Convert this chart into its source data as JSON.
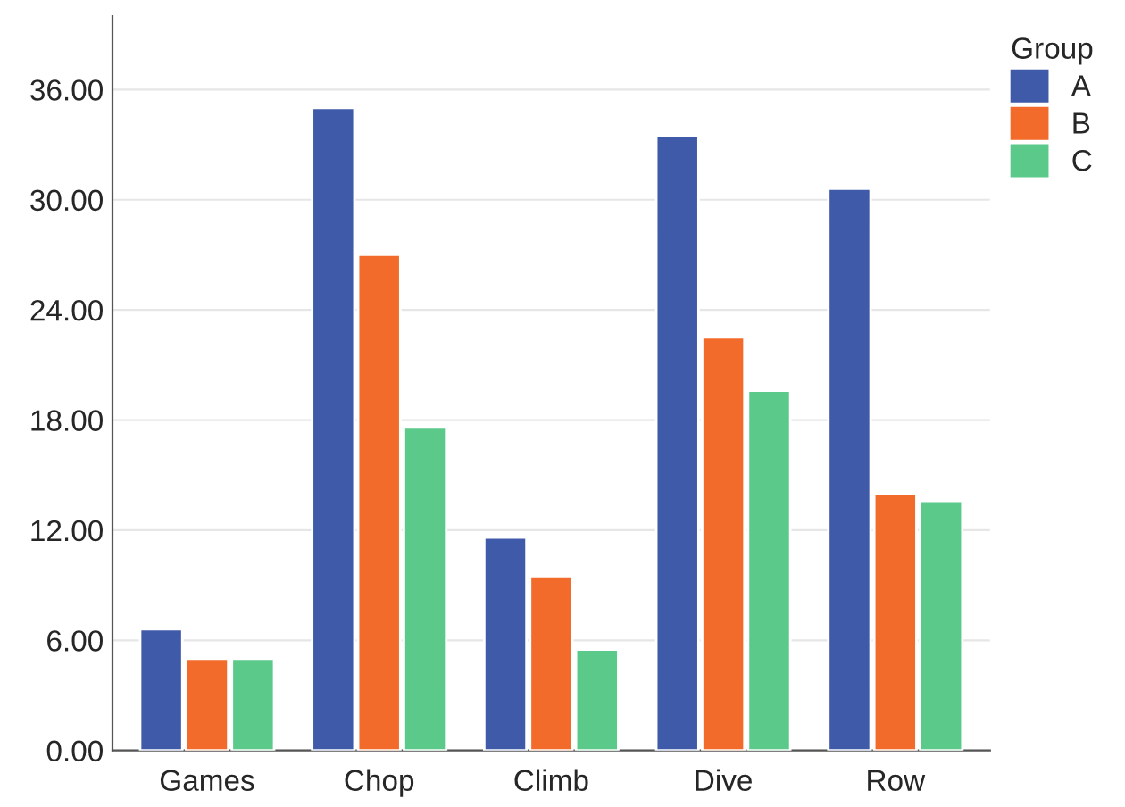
{
  "chart_data": {
    "type": "bar",
    "categories": [
      "Games",
      "Chop",
      "Climb",
      "Dive",
      "Row"
    ],
    "series": [
      {
        "name": "A",
        "color": "#3f5aa8",
        "values": [
          6.6,
          35.0,
          11.6,
          33.5,
          30.6
        ]
      },
      {
        "name": "B",
        "color": "#f26b2a",
        "values": [
          5.0,
          27.0,
          9.5,
          22.5,
          14.0
        ]
      },
      {
        "name": "C",
        "color": "#5bc98a",
        "values": [
          5.0,
          17.6,
          5.5,
          19.6,
          13.6
        ]
      }
    ],
    "legend_title": "Group",
    "legend": "top right",
    "ylim": [
      0,
      40
    ],
    "yticks": [
      {
        "value": 0,
        "label": "0.00"
      },
      {
        "value": 6,
        "label": "6.00"
      },
      {
        "value": 12,
        "label": "12.00"
      },
      {
        "value": 18,
        "label": "18.00"
      },
      {
        "value": 24,
        "label": "24.00"
      },
      {
        "value": 30,
        "label": "30.00"
      },
      {
        "value": 36,
        "label": "36.00"
      }
    ],
    "grid": "y"
  }
}
